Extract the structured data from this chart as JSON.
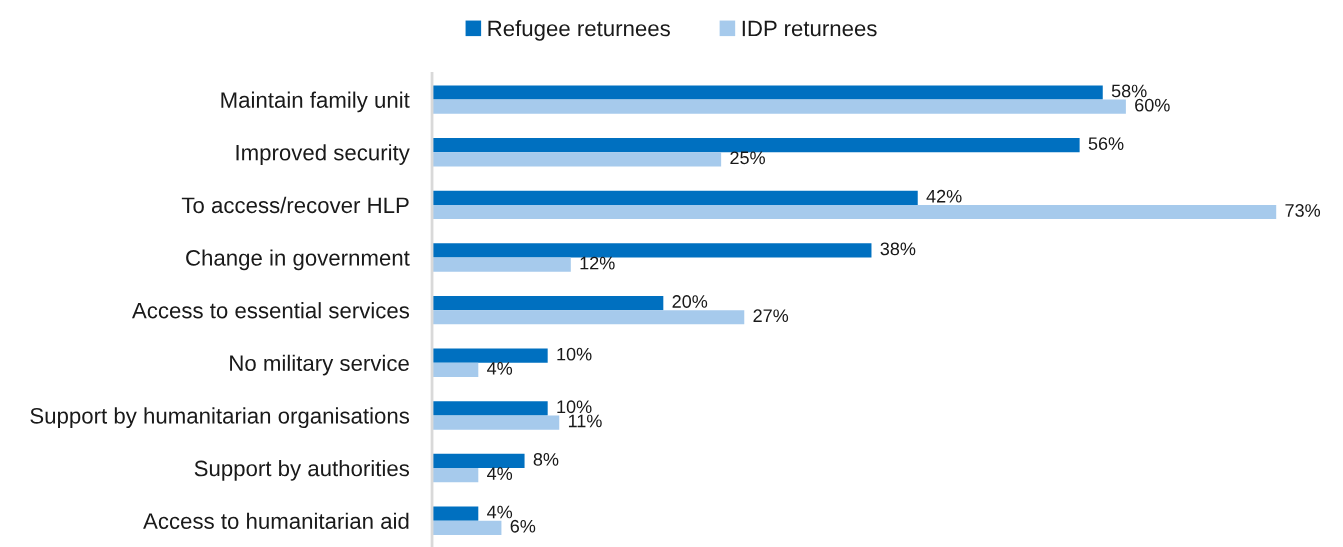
{
  "chart_data": {
    "type": "bar",
    "orientation": "horizontal",
    "categories": [
      "Maintain family unit",
      "Improved security",
      "To access/recover HLP",
      "Change in government",
      "Access to essential services",
      "No military service",
      "Support by humanitarian organisations",
      "Support by authorities",
      "Access to humanitarian aid"
    ],
    "series": [
      {
        "name": "Refugee returnees",
        "color": "#0070c0",
        "values": [
          58,
          56,
          42,
          38,
          20,
          10,
          10,
          8,
          4
        ],
        "value_labels": [
          "58%",
          "56%",
          "42%",
          "38%",
          "20%",
          "10%",
          "10%",
          "8%",
          "4%"
        ]
      },
      {
        "name": "IDP returnees",
        "color": "#a6caec",
        "values": [
          60,
          25,
          73,
          12,
          27,
          4,
          11,
          4,
          6
        ],
        "value_labels": [
          "60%",
          "25%",
          "73%",
          "12%",
          "27%",
          "4%",
          "11%",
          "4%",
          "6%"
        ]
      }
    ],
    "tick_labels": "y",
    "grid": false,
    "legend": "top"
  }
}
